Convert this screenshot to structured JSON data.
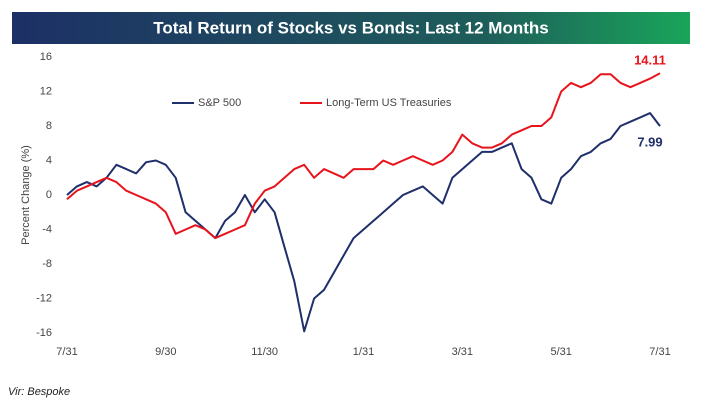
{
  "chart_data": {
    "type": "line",
    "title": "Total Return of Stocks vs Bonds: Last 12 Months",
    "ylabel": "Percent Change (%)",
    "source": "Vir: Bespoke",
    "categories": [
      "7/31",
      null,
      null,
      null,
      null,
      null,
      null,
      null,
      null,
      null,
      "9/30",
      null,
      null,
      null,
      null,
      null,
      null,
      null,
      null,
      null,
      "11/30",
      null,
      null,
      null,
      null,
      null,
      null,
      null,
      null,
      null,
      "1/31",
      null,
      null,
      null,
      null,
      null,
      null,
      null,
      null,
      null,
      "3/31",
      null,
      null,
      null,
      null,
      null,
      null,
      null,
      null,
      null,
      "5/31",
      null,
      null,
      null,
      null,
      null,
      null,
      null,
      null,
      null,
      "7/31"
    ],
    "series": [
      {
        "name": "S&P 500",
        "color": "#1f2f6b",
        "values": [
          0,
          1,
          1.5,
          1,
          2,
          3.5,
          3,
          2.5,
          3.8,
          4,
          3.5,
          2,
          -2,
          -3,
          -4,
          -5,
          -3,
          -2,
          0,
          -2,
          -0.5,
          -2,
          -6,
          -10,
          -15.8,
          -12,
          -11,
          -9,
          -7,
          -5,
          -4,
          -3,
          -2,
          -1,
          0,
          0.5,
          1,
          0,
          -1,
          2,
          3,
          4,
          5,
          5,
          5.5,
          6,
          3,
          2,
          -0.5,
          -1,
          2,
          3,
          4.5,
          5,
          6,
          6.5,
          8,
          8.5,
          9,
          9.5,
          7.99
        ]
      },
      {
        "name": "Long-Term US Treasuries",
        "color": "#e8141c",
        "values": [
          -0.5,
          0.5,
          1,
          1.5,
          2,
          1.5,
          0.5,
          0,
          -0.5,
          -1,
          -2,
          -4.5,
          -4,
          -3.5,
          -4,
          -5,
          -4.5,
          -4,
          -3.5,
          -1,
          0.5,
          1,
          2,
          3,
          3.5,
          2,
          3,
          2.5,
          2,
          3,
          3,
          3,
          4,
          3.5,
          4,
          4.5,
          4,
          3.5,
          4,
          5,
          7,
          6,
          5.5,
          5.5,
          6,
          7,
          7.5,
          8,
          8,
          9,
          12,
          13,
          12.5,
          13,
          14,
          14,
          13,
          12.5,
          13,
          13.5,
          14.11
        ]
      }
    ],
    "annotations": [
      {
        "text": "14.11",
        "color": "#e8141c"
      },
      {
        "text": "7.99",
        "color": "#1f2f6b"
      }
    ],
    "ylim": [
      -16,
      16
    ],
    "yticks": [
      16,
      12,
      8,
      4,
      0,
      -4,
      -8,
      -12,
      -16
    ],
    "grid": false,
    "legend": "upper center"
  }
}
